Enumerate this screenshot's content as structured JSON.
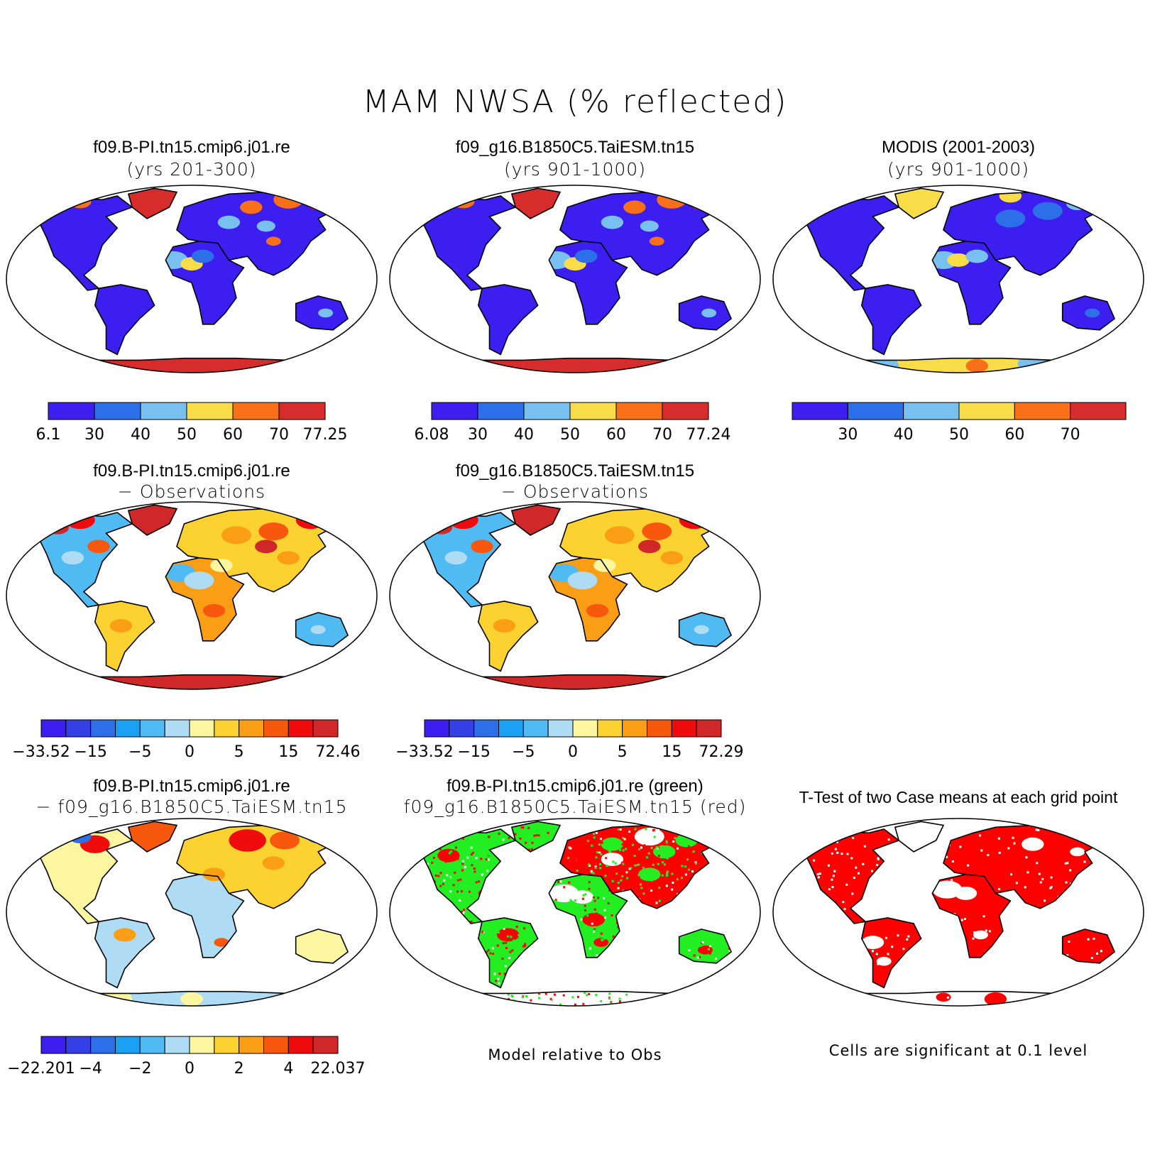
{
  "title": "MAM NWSA (% reflected)",
  "colors": {
    "seq": [
      "#3c1ef0",
      "#2c6fe8",
      "#78c0f0",
      "#f8dc48",
      "#fa7018",
      "#d62c2c"
    ],
    "div": [
      "#3c1ef0",
      "#3440e6",
      "#2c6fe8",
      "#1aa0f2",
      "#50baf2",
      "#aedcf4",
      "#fcf6a0",
      "#fcd230",
      "#fa9e16",
      "#f8580e",
      "#f00c0c",
      "#d02828"
    ],
    "green": "#22ee22",
    "red": "#ff0000",
    "land": "#ffffff",
    "outline": "#000000"
  },
  "panels": [
    {
      "id": "panel-case1",
      "title": "f09.B-PI.tn15.cmip6.j01.re",
      "subtitle": "(yrs 201-300)",
      "fill": "seq-case",
      "colorbar": {
        "palette": "seq",
        "labels": [
          "6.1",
          "30",
          "40",
          "50",
          "60",
          "70",
          "77.25"
        ],
        "ends": true
      }
    },
    {
      "id": "panel-case2",
      "title": "f09_g16.B1850C5.TaiESM.tn15",
      "subtitle": "(yrs 901-1000)",
      "fill": "seq-case",
      "colorbar": {
        "palette": "seq",
        "labels": [
          "6.08",
          "30",
          "40",
          "50",
          "60",
          "70",
          "77.24"
        ],
        "ends": true
      }
    },
    {
      "id": "panel-obs",
      "title": "MODIS (2001-2003)",
      "subtitle": "(yrs 901-1000)",
      "fill": "seq-obs",
      "colorbar": {
        "palette": "seq",
        "labels": [
          "30",
          "40",
          "50",
          "60",
          "70"
        ],
        "ends": false
      }
    },
    {
      "id": "panel-case1-minus-obs",
      "title": "f09.B-PI.tn15.cmip6.j01.re",
      "subtitle": "− Observations",
      "fill": "div-obs",
      "colorbar": {
        "palette": "div",
        "labels": [
          "−33.52",
          "−15",
          "−5",
          "0",
          "5",
          "15",
          "72.46"
        ],
        "ends": true
      }
    },
    {
      "id": "panel-case2-minus-obs",
      "title": "f09_g16.B1850C5.TaiESM.tn15",
      "subtitle": "− Observations",
      "fill": "div-obs",
      "colorbar": {
        "palette": "div",
        "labels": [
          "−33.52",
          "−15",
          "−5",
          "0",
          "5",
          "15",
          "72.29"
        ],
        "ends": true
      }
    },
    {
      "id": "panel-case-diff",
      "title": "f09.B-PI.tn15.cmip6.j01.re",
      "subtitle": "− f09_g16.B1850C5.TaiESM.tn15",
      "fill": "div-diff",
      "colorbar": {
        "palette": "div",
        "labels": [
          "−22.201",
          "−4",
          "−2",
          "0",
          "2",
          "4",
          "22.037"
        ],
        "ends": true
      }
    },
    {
      "id": "panel-relative",
      "title": "f09.B-PI.tn15.cmip6.j01.re (green)",
      "subtitle": "f09_g16.B1850C5.TaiESM.tn15 (red)",
      "fill": "greenred",
      "note": "Model relative to Obs"
    },
    {
      "id": "panel-ttest",
      "title": "T-Test of two Case means at each grid point",
      "subtitle": "",
      "fill": "ttest",
      "note": "Cells are significant at 0.1 level"
    }
  ]
}
